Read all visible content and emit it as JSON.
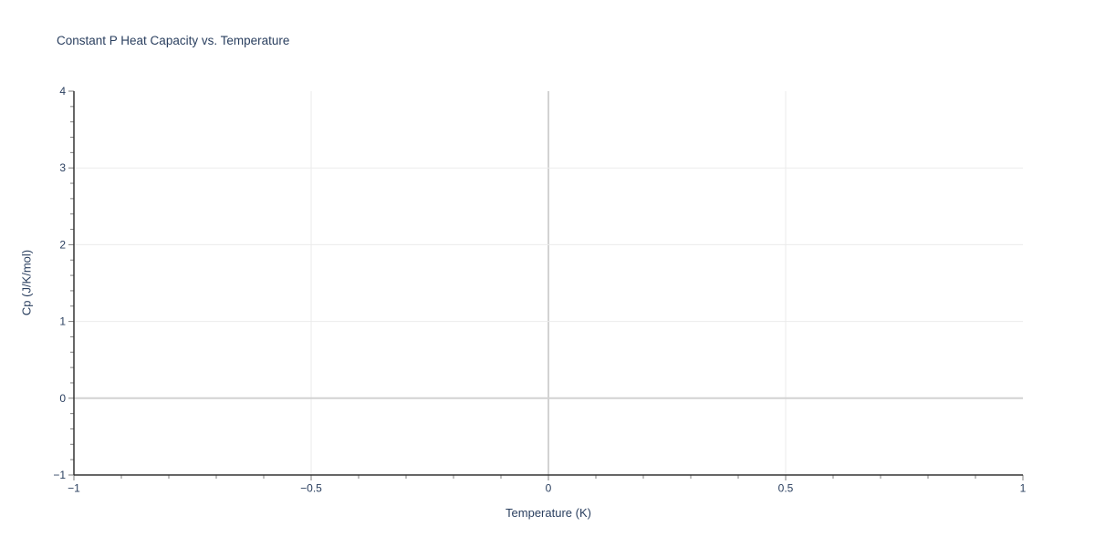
{
  "chart_data": {
    "type": "line",
    "title": "Constant P Heat Capacity vs. Temperature",
    "xlabel": "Temperature (K)",
    "ylabel": "Cp (J/K/mol)",
    "xlim": [
      -1,
      1
    ],
    "ylim": [
      -1,
      4
    ],
    "xticks": [
      -1,
      -0.5,
      0,
      0.5,
      1
    ],
    "xtick_labels": [
      "−1",
      "−0.5",
      "0",
      "0.5",
      "1"
    ],
    "yticks": [
      -1,
      0,
      1,
      2,
      3,
      4
    ],
    "ytick_labels": [
      "−1",
      "0",
      "1",
      "2",
      "3",
      "4"
    ],
    "x_minor_step": 0.1,
    "y_minor_step": 0.2,
    "grid": true,
    "zeroline_x": 0,
    "zeroline_y": 0,
    "legend": "none",
    "series": []
  },
  "colors": {
    "background": "#ffffff",
    "text": "#2a3f5f",
    "axis_line": "#333333",
    "tick_mark": "#7f7f7f",
    "gridline": "#ebebeb",
    "zeroline": "#d2d2d2"
  }
}
